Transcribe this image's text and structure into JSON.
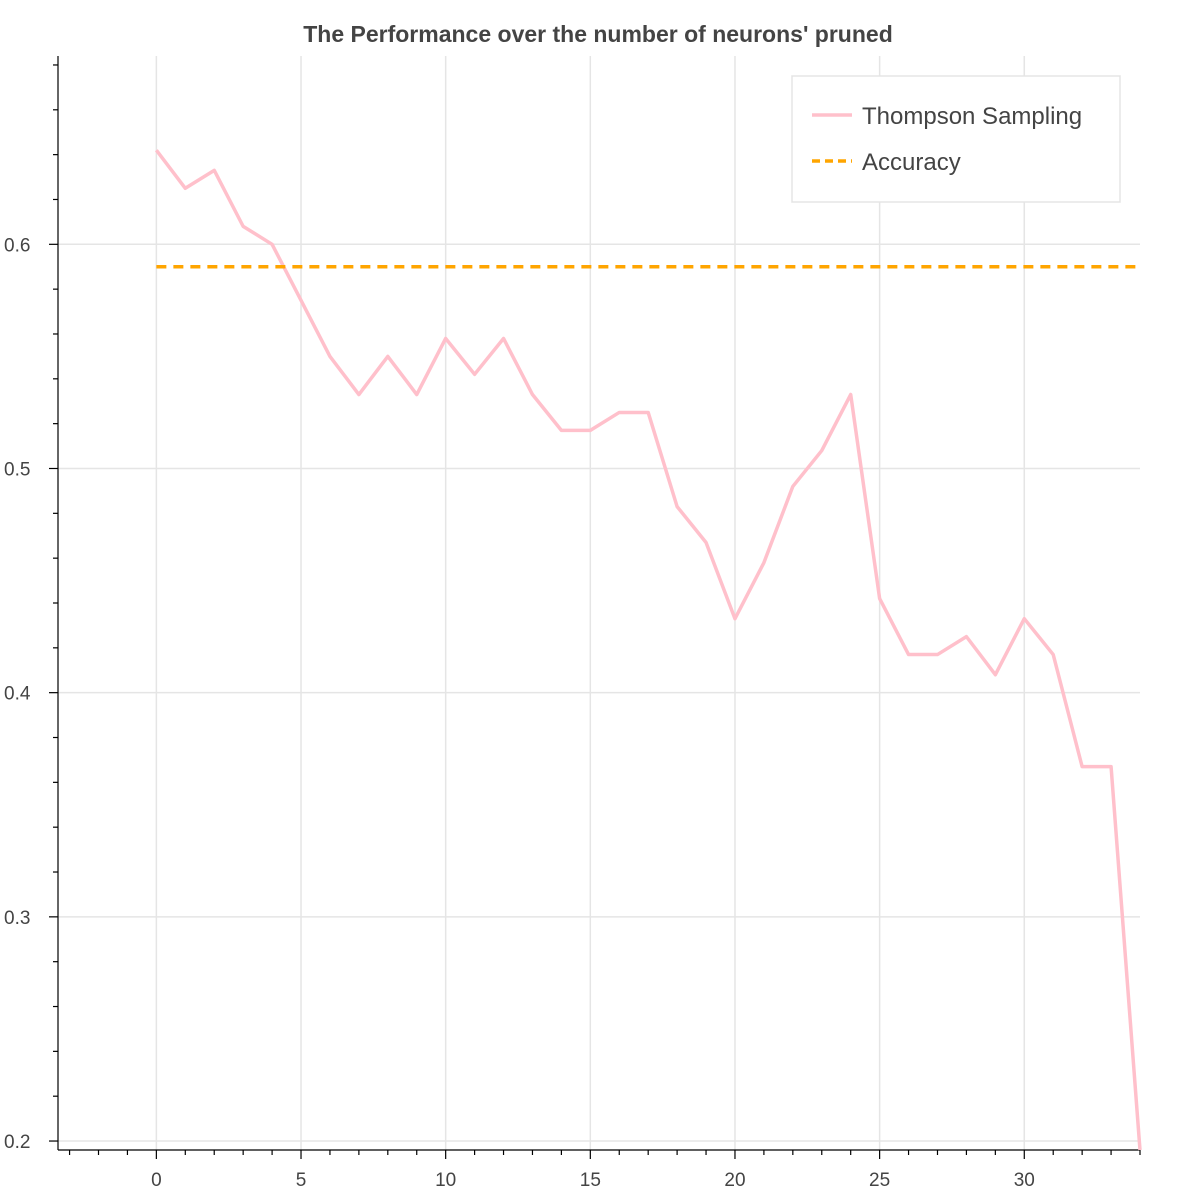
{
  "chart_data": {
    "type": "line",
    "title": "The Performance over the number of neurons' pruned",
    "xlabel": "",
    "ylabel": "",
    "xlim": [
      -3.4,
      34
    ],
    "ylim": [
      0.196,
      0.684
    ],
    "x_ticks": [
      0,
      5,
      10,
      15,
      20,
      25,
      30
    ],
    "x_tick_labels": [
      "0",
      "5",
      "10",
      "15",
      "20",
      "25",
      "30"
    ],
    "y_ticks": [
      0.2,
      0.3,
      0.4,
      0.5,
      0.6
    ],
    "y_tick_labels": [
      "0.2",
      "0.3",
      "0.4",
      "0.5",
      "0.6"
    ],
    "grid": true,
    "legend_position": "top-right",
    "series": [
      {
        "name": "Thompson Sampling",
        "style": "solid",
        "color": "#ffc0cb",
        "x": [
          0,
          1,
          2,
          3,
          4,
          5,
          6,
          7,
          8,
          9,
          10,
          11,
          12,
          13,
          14,
          15,
          16,
          17,
          18,
          19,
          20,
          21,
          22,
          23,
          24,
          25,
          26,
          27,
          28,
          29,
          30,
          31,
          32,
          33,
          34
        ],
        "values": [
          0.642,
          0.625,
          0.633,
          0.608,
          0.6,
          0.575,
          0.55,
          0.533,
          0.55,
          0.533,
          0.558,
          0.542,
          0.558,
          0.533,
          0.517,
          0.517,
          0.525,
          0.525,
          0.483,
          0.467,
          0.433,
          0.458,
          0.492,
          0.508,
          0.533,
          0.442,
          0.417,
          0.417,
          0.425,
          0.408,
          0.433,
          0.417,
          0.367,
          0.367,
          0.196
        ]
      },
      {
        "name": "Accuracy",
        "style": "dashed",
        "color": "#ffa500",
        "x": [
          0,
          34
        ],
        "values": [
          0.59,
          0.59
        ]
      }
    ]
  }
}
